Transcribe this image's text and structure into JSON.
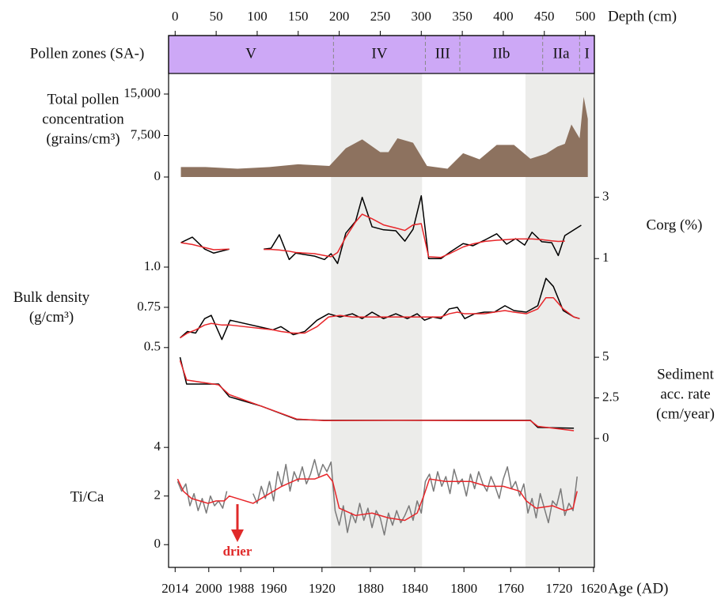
{
  "chart_data": [
    {
      "type": "zones",
      "title": "Pollen zones (SA-)",
      "xlabel": "Depth (cm)",
      "xlim": [
        -8,
        511
      ],
      "xticks": [
        0,
        50,
        100,
        150,
        200,
        250,
        300,
        350,
        400,
        450,
        500
      ],
      "boundaries": [
        193,
        305,
        347,
        448,
        493
      ],
      "zones": [
        "V",
        "IV",
        "III",
        "IIb",
        "IIa",
        "I"
      ],
      "color": "#cda8f6",
      "shaded_spans": [
        [
          190,
          301
        ],
        [
          427,
          511
        ]
      ]
    },
    {
      "type": "area",
      "ylabel": [
        "Total pollen",
        "concentration",
        "(grains/cm³)"
      ],
      "axis_side": "left",
      "ylim": [
        0,
        15000
      ],
      "yticks": [
        0,
        {
          "value": 7500,
          "label": "7,500"
        },
        {
          "value": 15000,
          "label": "15,000"
        }
      ],
      "x": [
        7,
        37,
        76,
        115,
        150,
        188,
        208,
        228,
        250,
        260,
        271,
        290,
        307,
        332,
        351,
        371,
        392,
        413,
        433,
        452,
        466,
        475,
        483,
        493,
        498,
        503
      ],
      "series": [
        {
          "color": "#8d725f",
          "values": [
            1800,
            1800,
            1500,
            1800,
            2300,
            2000,
            5200,
            6800,
            4500,
            4500,
            7000,
            6200,
            2000,
            1500,
            4300,
            3200,
            5800,
            5800,
            3300,
            4200,
            5500,
            6000,
            9500,
            7000,
            14500,
            10500
          ]
        }
      ]
    },
    {
      "type": "line",
      "ylabel": [
        "Corg (%)"
      ],
      "axis_side": "right",
      "ylim": [
        0.8,
        3.25
      ],
      "yticks": [
        1,
        3
      ],
      "x": [
        7,
        21,
        36,
        47,
        66,
        87,
        108,
        117,
        127,
        139,
        147,
        170,
        182,
        190,
        198,
        208,
        220,
        228,
        240,
        254,
        269,
        280,
        290,
        300,
        309,
        324,
        336,
        351,
        363,
        377,
        392,
        404,
        415,
        426,
        435,
        447,
        459,
        467,
        475,
        495
      ],
      "series": [
        {
          "color": "#000000",
          "values": [
            1.52,
            1.7,
            1.31,
            1.18,
            1.31,
            null,
            1.31,
            1.34,
            1.78,
            0.97,
            1.18,
            1.08,
            0.97,
            1.16,
            0.84,
            1.83,
            2.22,
            3.0,
            2.04,
            1.94,
            1.91,
            1.57,
            1.96,
            3.05,
            1.0,
            1.0,
            1.23,
            1.49,
            1.42,
            1.6,
            1.81,
            1.47,
            1.65,
            1.44,
            1.86,
            1.55,
            1.52,
            1.1,
            1.75,
            2.09
          ]
        },
        {
          "color": "#e8262a",
          "values": [
            1.52,
            1.46,
            1.36,
            1.29,
            1.31,
            null,
            1.3,
            1.3,
            1.28,
            1.24,
            1.2,
            1.16,
            1.1,
            1.06,
            1.2,
            1.7,
            2.2,
            2.45,
            2.3,
            2.1,
            2.0,
            1.92,
            2.1,
            2.14,
            1.06,
            1.04,
            1.18,
            1.38,
            1.48,
            1.56,
            1.6,
            1.62,
            1.64,
            1.64,
            1.64,
            1.62,
            1.58,
            1.56,
            1.57,
            null
          ]
        }
      ]
    },
    {
      "type": "line",
      "ylabel": [
        "Bulk density",
        "(g/cm³)"
      ],
      "axis_side": "left",
      "ylim": [
        0.45,
        1.0
      ],
      "yticks": [
        0.5,
        0.75,
        {
          "value": 1,
          "label": "1.0"
        }
      ],
      "x": [
        6,
        15,
        25,
        36,
        44,
        57,
        67,
        119,
        129,
        144,
        158,
        173,
        187,
        201,
        216,
        228,
        240,
        254,
        269,
        283,
        295,
        304,
        314,
        324,
        334,
        344,
        353,
        365,
        377,
        389,
        402,
        413,
        428,
        442,
        452,
        461,
        473,
        486,
        493
      ],
      "series": [
        {
          "color": "#000000",
          "values": [
            0.56,
            0.6,
            0.59,
            0.68,
            0.7,
            0.55,
            0.67,
            0.61,
            0.63,
            0.58,
            0.6,
            0.67,
            0.71,
            0.69,
            0.71,
            0.68,
            0.72,
            0.68,
            0.71,
            0.68,
            0.71,
            0.67,
            0.69,
            0.68,
            0.74,
            0.75,
            0.68,
            0.71,
            0.72,
            0.72,
            0.76,
            0.73,
            0.72,
            0.76,
            0.93,
            0.88,
            0.73,
            0.69,
            0.68
          ]
        },
        {
          "color": "#e8262a",
          "values": [
            0.56,
            0.59,
            0.61,
            0.64,
            0.65,
            0.64,
            0.64,
            0.61,
            0.6,
            0.59,
            0.59,
            0.63,
            0.69,
            0.7,
            0.69,
            0.69,
            0.69,
            0.69,
            0.69,
            0.69,
            0.69,
            0.69,
            0.69,
            0.69,
            0.71,
            0.72,
            0.71,
            0.71,
            0.71,
            0.72,
            0.73,
            0.72,
            0.71,
            0.74,
            0.81,
            0.81,
            0.74,
            0.69,
            0.68
          ]
        }
      ]
    },
    {
      "type": "line",
      "ylabel": [
        "Sediment",
        "acc. rate",
        "(cm/year)"
      ],
      "axis_side": "right",
      "ylim": [
        -0.25,
        5.2
      ],
      "yticks": [
        0,
        2.5,
        5
      ],
      "x": [
        6,
        14,
        53,
        66,
        105,
        148,
        182,
        269,
        365,
        433,
        442,
        486
      ],
      "series": [
        {
          "color": "#000000",
          "values": [
            5.0,
            3.35,
            3.35,
            2.57,
            1.99,
            1.17,
            1.12,
            1.12,
            1.12,
            1.12,
            0.68,
            0.63
          ]
        },
        {
          "color": "#e8262a",
          "values": [
            4.8,
            3.6,
            3.3,
            2.7,
            1.99,
            1.2,
            1.1,
            1.12,
            1.1,
            1.1,
            0.75,
            0.48
          ]
        }
      ]
    },
    {
      "type": "line",
      "ylabel": [
        "Ti/Ca"
      ],
      "axis_side": "left",
      "ylim": [
        -1.0,
        4.2
      ],
      "yticks": [
        0,
        2,
        4
      ],
      "annotation": "drier",
      "annotation_color": "#e02a2a",
      "xlabel": "Age (AD)",
      "xticks": [
        {
          "value": 0,
          "label": "2014"
        },
        {
          "value": 41,
          "label": "2000"
        },
        {
          "value": 80,
          "label": "1988"
        },
        {
          "value": 120,
          "label": "1960"
        },
        {
          "value": 179,
          "label": "1920"
        },
        {
          "value": 238,
          "label": "1880"
        },
        {
          "value": 292,
          "label": "1840"
        },
        {
          "value": 352,
          "label": "1800"
        },
        {
          "value": 409,
          "label": "1760"
        },
        {
          "value": 468,
          "label": "1720"
        },
        {
          "value": 510,
          "label": "1620"
        }
      ],
      "series": [
        {
          "color": "#7a7a7a",
          "x": [
            3,
            8,
            13,
            18,
            23,
            28,
            33,
            38,
            43,
            48,
            53,
            58,
            63,
            80,
            95,
            100,
            105,
            110,
            115,
            120,
            125,
            130,
            135,
            140,
            145,
            150,
            155,
            160,
            165,
            170,
            175,
            180,
            185,
            190,
            195,
            200,
            205,
            210,
            215,
            220,
            225,
            230,
            235,
            240,
            245,
            250,
            255,
            260,
            265,
            270,
            275,
            280,
            285,
            290,
            295,
            300,
            305,
            310,
            315,
            320,
            325,
            330,
            335,
            340,
            345,
            350,
            355,
            360,
            365,
            370,
            375,
            380,
            385,
            390,
            395,
            400,
            405,
            410,
            415,
            420,
            425,
            430,
            435,
            440,
            445,
            450,
            455,
            460,
            465,
            470,
            475,
            480,
            485,
            490
          ],
          "values": [
            2.6,
            2.2,
            2.5,
            1.6,
            2.1,
            1.4,
            1.9,
            1.3,
            2.0,
            1.6,
            1.8,
            1.5,
            2.2,
            null,
            2.1,
            1.7,
            2.4,
            1.9,
            2.6,
            1.8,
            3.0,
            2.4,
            3.3,
            2.2,
            3.0,
            2.6,
            3.2,
            2.5,
            2.9,
            3.5,
            2.8,
            3.3,
            3.0,
            3.4,
            1.4,
            0.8,
            1.6,
            0.5,
            1.3,
            0.9,
            1.7,
            1.0,
            1.5,
            0.7,
            1.4,
            1.1,
            0.4,
            1.3,
            0.8,
            1.4,
            0.9,
            1.2,
            1.6,
            1.0,
            1.8,
            1.3,
            2.6,
            2.9,
            2.2,
            3.0,
            2.4,
            2.8,
            2.1,
            3.1,
            2.5,
            2.7,
            2.0,
            2.9,
            2.3,
            3.0,
            2.5,
            2.2,
            2.8,
            2.4,
            1.9,
            2.7,
            3.2,
            2.3,
            2.6,
            2.0,
            2.5,
            1.3,
            1.9,
            1.1,
            2.1,
            1.5,
            0.9,
            1.8,
            1.6,
            2.3,
            1.2,
            1.7,
            1.4,
            2.8
          ]
        },
        {
          "color": "#e8262a",
          "x": [
            3,
            10,
            20,
            30,
            40,
            50,
            60,
            66,
            95,
            110,
            130,
            150,
            170,
            185,
            192,
            200,
            220,
            240,
            260,
            280,
            295,
            303,
            310,
            330,
            360,
            380,
            400,
            420,
            428,
            440,
            460,
            475,
            485,
            490
          ],
          "values": [
            2.7,
            2.2,
            1.9,
            1.8,
            1.7,
            1.8,
            1.8,
            2.0,
            1.7,
            2.0,
            2.4,
            2.7,
            2.7,
            2.9,
            2.6,
            1.5,
            1.2,
            1.3,
            1.1,
            1.0,
            1.3,
            2.0,
            2.7,
            2.6,
            2.6,
            2.4,
            2.4,
            2.2,
            1.8,
            1.5,
            1.6,
            1.4,
            1.5,
            2.2
          ]
        }
      ]
    }
  ]
}
